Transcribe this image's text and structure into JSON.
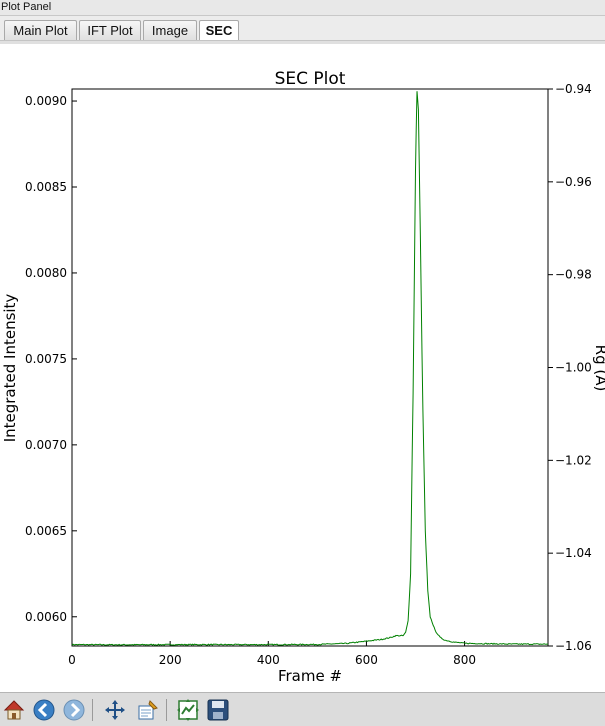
{
  "window": {
    "title": "Plot Panel"
  },
  "tabs": [
    {
      "label": "Main Plot",
      "active": false
    },
    {
      "label": "IFT Plot",
      "active": false
    },
    {
      "label": "Image",
      "active": false
    },
    {
      "label": "SEC",
      "active": true
    }
  ],
  "toolbar": {
    "tools": [
      "home-icon",
      "back-icon",
      "forward-icon",
      "pan-icon",
      "zoom-icon",
      "subplot-config-icon",
      "save-icon"
    ]
  },
  "chart_data": {
    "type": "line",
    "title": "SEC Plot",
    "xlabel": "Frame #",
    "ylabel": "Integrated Intensity",
    "y2label": "Rg (A)",
    "xlim": [
      0,
      970
    ],
    "ylim": [
      0.00583,
      0.00907
    ],
    "y2lim": [
      -1.06,
      -0.94
    ],
    "x_ticks": [
      0,
      200,
      400,
      600,
      800
    ],
    "x_tick_labels": [
      "0",
      "200",
      "400",
      "600",
      "800"
    ],
    "y_ticks": [
      0.006,
      0.0065,
      0.007,
      0.0075,
      0.008,
      0.0085,
      0.009
    ],
    "y_tick_labels": [
      "0.0060",
      "0.0065",
      "0.0070",
      "0.0075",
      "0.0080",
      "0.0085",
      "0.0090"
    ],
    "y2_ticks": [
      -1.06,
      -1.04,
      -1.02,
      -1.0,
      -0.98,
      -0.96,
      -0.94
    ],
    "y2_tick_labels": [
      "−1.06",
      "−1.04",
      "−1.02",
      "−1.00",
      "−0.98",
      "−0.96",
      "−0.94"
    ],
    "grid": false,
    "series": [
      {
        "color": "#008000",
        "x": [
          0,
          100,
          200,
          300,
          400,
          500,
          560,
          600,
          630,
          650,
          660,
          670,
          675,
          680,
          685,
          690,
          695,
          700,
          703,
          706,
          710,
          715,
          720,
          725,
          730,
          740,
          750,
          760,
          780,
          800,
          850,
          900,
          970
        ],
        "y": [
          0.005838,
          0.005837,
          0.005838,
          0.005838,
          0.005838,
          0.005839,
          0.005845,
          0.005858,
          0.005868,
          0.00588,
          0.00589,
          0.00589,
          0.00589,
          0.00591,
          0.00598,
          0.00625,
          0.0073,
          0.0086,
          0.00906,
          0.00895,
          0.0082,
          0.0072,
          0.0065,
          0.00615,
          0.006,
          0.00592,
          0.00588,
          0.005864,
          0.005852,
          0.005846,
          0.005843,
          0.005841,
          0.005841
        ]
      }
    ]
  }
}
